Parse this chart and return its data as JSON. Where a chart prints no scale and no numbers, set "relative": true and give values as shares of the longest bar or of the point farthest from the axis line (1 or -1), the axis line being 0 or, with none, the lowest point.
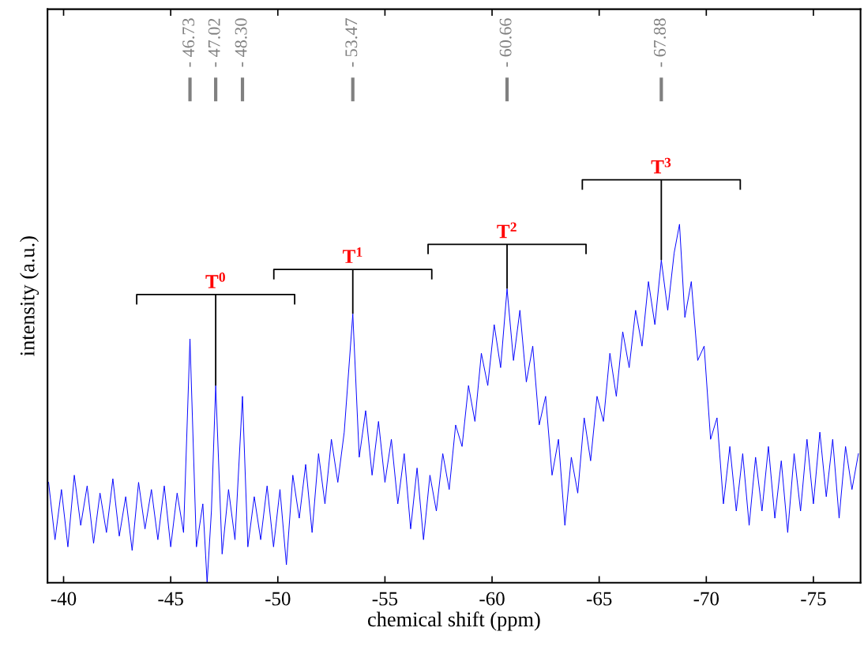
{
  "chart_data": {
    "type": "line",
    "relative": true,
    "xlabel": "chemical shift (ppm)",
    "ylabel": "intensity (a.u.)",
    "xlim": [
      -39.25,
      -77.2
    ],
    "xticks": [
      -40,
      -45,
      -50,
      -55,
      -60,
      -65,
      -70,
      -75
    ],
    "grid": false,
    "marker": "none",
    "line_style": "solid",
    "series": [
      {
        "color": "#0000ff",
        "x": [
          -39.3,
          -39.6,
          -39.9,
          -40.2,
          -40.5,
          -40.8,
          -41.1,
          -41.4,
          -41.7,
          -42.0,
          -42.3,
          -42.6,
          -42.9,
          -43.2,
          -43.5,
          -43.8,
          -44.1,
          -44.4,
          -44.7,
          -45.0,
          -45.3,
          -45.6,
          -45.9,
          -46.2,
          -46.5,
          -46.7,
          -46.9,
          -47.1,
          -47.4,
          -47.7,
          -48.0,
          -48.35,
          -48.6,
          -48.9,
          -49.2,
          -49.5,
          -49.8,
          -50.1,
          -50.4,
          -50.7,
          -51.0,
          -51.3,
          -51.6,
          -51.9,
          -52.2,
          -52.5,
          -52.8,
          -53.1,
          -53.5,
          -53.8,
          -54.1,
          -54.4,
          -54.7,
          -55.0,
          -55.3,
          -55.6,
          -55.9,
          -56.2,
          -56.5,
          -56.8,
          -57.1,
          -57.4,
          -57.7,
          -58.0,
          -58.3,
          -58.6,
          -58.9,
          -59.2,
          -59.5,
          -59.8,
          -60.1,
          -60.4,
          -60.7,
          -61.0,
          -61.3,
          -61.6,
          -61.9,
          -62.2,
          -62.5,
          -62.8,
          -63.1,
          -63.4,
          -63.7,
          -64.0,
          -64.3,
          -64.6,
          -64.9,
          -65.2,
          -65.5,
          -65.8,
          -66.1,
          -66.4,
          -66.7,
          -67.0,
          -67.3,
          -67.6,
          -67.9,
          -68.2,
          -68.5,
          -68.75,
          -69.0,
          -69.3,
          -69.6,
          -69.9,
          -70.2,
          -70.5,
          -70.8,
          -71.1,
          -71.4,
          -71.7,
          -72.0,
          -72.3,
          -72.6,
          -72.9,
          -73.2,
          -73.5,
          -73.8,
          -74.1,
          -74.4,
          -74.7,
          -75.0,
          -75.3,
          -75.6,
          -75.9,
          -76.2,
          -76.5,
          -76.8,
          -77.1
        ],
        "values": [
          0.28,
          0.12,
          0.26,
          0.1,
          0.3,
          0.16,
          0.27,
          0.11,
          0.25,
          0.14,
          0.29,
          0.13,
          0.24,
          0.09,
          0.28,
          0.15,
          0.26,
          0.12,
          0.27,
          0.1,
          0.25,
          0.14,
          0.68,
          0.1,
          0.22,
          0.0,
          0.2,
          0.55,
          0.08,
          0.26,
          0.12,
          0.52,
          0.1,
          0.24,
          0.12,
          0.27,
          0.1,
          0.26,
          0.05,
          0.3,
          0.18,
          0.33,
          0.14,
          0.36,
          0.22,
          0.4,
          0.28,
          0.42,
          0.75,
          0.35,
          0.48,
          0.3,
          0.45,
          0.28,
          0.4,
          0.22,
          0.36,
          0.15,
          0.32,
          0.12,
          0.3,
          0.2,
          0.36,
          0.26,
          0.44,
          0.38,
          0.55,
          0.45,
          0.64,
          0.55,
          0.72,
          0.6,
          0.82,
          0.62,
          0.76,
          0.56,
          0.66,
          0.44,
          0.52,
          0.3,
          0.4,
          0.16,
          0.35,
          0.25,
          0.46,
          0.34,
          0.52,
          0.45,
          0.64,
          0.52,
          0.7,
          0.6,
          0.76,
          0.66,
          0.84,
          0.72,
          0.9,
          0.76,
          0.92,
          1.0,
          0.74,
          0.84,
          0.62,
          0.66,
          0.4,
          0.46,
          0.22,
          0.38,
          0.2,
          0.36,
          0.16,
          0.35,
          0.2,
          0.38,
          0.18,
          0.34,
          0.14,
          0.36,
          0.2,
          0.4,
          0.22,
          0.42,
          0.24,
          0.4,
          0.18,
          0.38,
          0.26,
          0.36
        ]
      }
    ],
    "annotations": [
      {
        "text": "T$^{0}$",
        "x": -47.1,
        "y": 0.55
      },
      {
        "text": "T$^{1}$",
        "x": -53.5,
        "y": 0.75
      },
      {
        "text": "T$^{2}$",
        "x": -60.7,
        "y": 0.82
      },
      {
        "text": "T$^{3}$",
        "x": -67.9,
        "y": 0.9
      },
      {
        "text": "- 46.73",
        "x": -45.9,
        "y": 0.68
      },
      {
        "text": "- 47.02",
        "x": -47.1,
        "y": 0.55
      },
      {
        "text": "- 48.30",
        "x": -48.35,
        "y": 0.52
      },
      {
        "text": "- 53.47",
        "x": -53.5,
        "y": 0.75
      },
      {
        "text": "- 60.66",
        "x": -60.7,
        "y": 0.82
      },
      {
        "text": "- 67.88",
        "x": -67.9,
        "y": 0.9
      }
    ]
  }
}
